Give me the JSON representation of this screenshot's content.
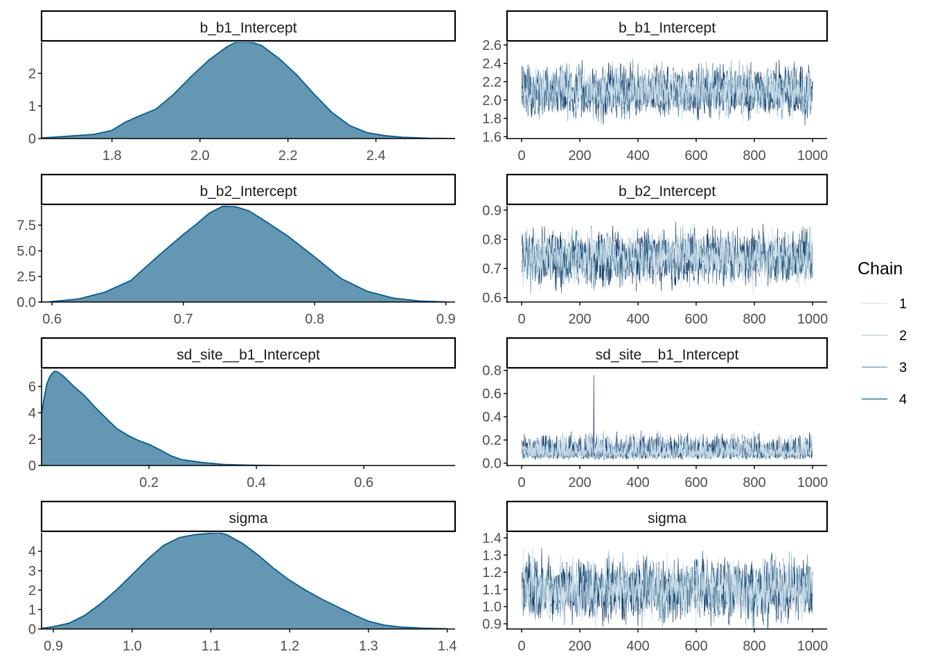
{
  "legend": {
    "title": "Chain",
    "items": [
      {
        "label": "1",
        "color": "#d1e1ec"
      },
      {
        "label": "2",
        "color": "#b3cde0"
      },
      {
        "label": "3",
        "color": "#6497b1"
      },
      {
        "label": "4",
        "color": "#005b96"
      }
    ]
  },
  "colors": {
    "density_fill": "#6497b1",
    "density_line": "#005b96",
    "trace_chains": [
      "#011f4b",
      "#03396c",
      "#6497b1",
      "#d1e1ec"
    ],
    "strip_border": "#000000",
    "axis": "#000000",
    "tick_label": "#4d4d4d"
  },
  "chart_data": [
    {
      "type": "area",
      "kind": "density",
      "title": "b_b1_Intercept",
      "xlim": [
        1.64,
        2.58
      ],
      "ylim": [
        0,
        2.95
      ],
      "xticks": [
        1.8,
        2.0,
        2.2,
        2.4
      ],
      "xtick_labels": [
        "1.8",
        "2.0",
        "2.2",
        "2.4"
      ],
      "yticks": [
        0,
        1,
        2
      ],
      "ytick_labels": [
        "0",
        "1",
        "2"
      ],
      "x": [
        1.64,
        1.7,
        1.76,
        1.8,
        1.83,
        1.86,
        1.9,
        1.94,
        1.98,
        2.02,
        2.06,
        2.08,
        2.1,
        2.12,
        2.14,
        2.18,
        2.22,
        2.26,
        2.3,
        2.34,
        2.38,
        2.42,
        2.46,
        2.52,
        2.58
      ],
      "y": [
        0.02,
        0.07,
        0.13,
        0.25,
        0.5,
        0.68,
        0.9,
        1.35,
        1.9,
        2.4,
        2.8,
        2.94,
        2.95,
        2.94,
        2.85,
        2.45,
        1.95,
        1.35,
        0.8,
        0.4,
        0.18,
        0.09,
        0.04,
        0.01,
        0.0
      ]
    },
    {
      "type": "line",
      "kind": "trace",
      "title": "b_b1_Intercept",
      "xlim": [
        -50,
        1050
      ],
      "ylim": [
        1.58,
        2.63
      ],
      "xticks": [
        0,
        200,
        400,
        600,
        800,
        1000
      ],
      "xtick_labels": [
        "0",
        "200",
        "400",
        "600",
        "800",
        "1000"
      ],
      "yticks": [
        1.6,
        1.8,
        2.0,
        2.2,
        2.4,
        2.6
      ],
      "ytick_labels": [
        "1.6",
        "1.8",
        "2.0",
        "2.2",
        "2.4",
        "2.6"
      ],
      "iterations": [
        1,
        1000
      ],
      "chains": 4,
      "mean": 2.09,
      "sd": 0.135,
      "spikes": []
    },
    {
      "type": "area",
      "kind": "density",
      "title": "b_b2_Intercept",
      "xlim": [
        0.592,
        0.907
      ],
      "ylim": [
        0,
        9.4
      ],
      "xticks": [
        0.6,
        0.7,
        0.8,
        0.9
      ],
      "xtick_labels": [
        "0.6",
        "0.7",
        "0.8",
        "0.9"
      ],
      "yticks": [
        0,
        2.5,
        5.0,
        7.5
      ],
      "ytick_labels": [
        "0.0",
        "2.5",
        "5.0",
        "7.5"
      ],
      "x": [
        0.598,
        0.62,
        0.64,
        0.66,
        0.68,
        0.7,
        0.71,
        0.72,
        0.73,
        0.74,
        0.75,
        0.76,
        0.78,
        0.8,
        0.82,
        0.84,
        0.86,
        0.88,
        0.9
      ],
      "y": [
        0.02,
        0.3,
        0.95,
        2.1,
        4.4,
        6.6,
        7.6,
        8.7,
        9.35,
        9.3,
        8.9,
        8.1,
        6.4,
        4.4,
        2.3,
        1.05,
        0.38,
        0.1,
        0.01
      ]
    },
    {
      "type": "line",
      "kind": "trace",
      "title": "b_b2_Intercept",
      "xlim": [
        -50,
        1050
      ],
      "ylim": [
        0.585,
        0.915
      ],
      "xticks": [
        0,
        200,
        400,
        600,
        800,
        1000
      ],
      "xtick_labels": [
        "0",
        "200",
        "400",
        "600",
        "800",
        "1000"
      ],
      "yticks": [
        0.6,
        0.7,
        0.8,
        0.9
      ],
      "ytick_labels": [
        "0.6",
        "0.7",
        "0.8",
        "0.9"
      ],
      "iterations": [
        1,
        1000
      ],
      "chains": 4,
      "mean": 0.735,
      "sd": 0.045,
      "spikes": []
    },
    {
      "type": "area",
      "kind": "density",
      "title": "sd_site__b1_Intercept",
      "xlim": [
        0.0,
        0.77
      ],
      "ylim": [
        0,
        7.3
      ],
      "xticks": [
        0.2,
        0.4,
        0.6
      ],
      "xtick_labels": [
        "0.2",
        "0.4",
        "0.6"
      ],
      "yticks": [
        0,
        2,
        4,
        6
      ],
      "ytick_labels": [
        "0",
        "2",
        "4",
        "6"
      ],
      "x": [
        0.0,
        0.005,
        0.01,
        0.015,
        0.02,
        0.025,
        0.03,
        0.04,
        0.05,
        0.06,
        0.08,
        0.1,
        0.12,
        0.14,
        0.16,
        0.18,
        0.2,
        0.22,
        0.24,
        0.26,
        0.3,
        0.34,
        0.38,
        0.42,
        0.445
      ],
      "y": [
        3.9,
        5.2,
        6.2,
        6.7,
        7.0,
        7.15,
        7.1,
        6.8,
        6.4,
        6.0,
        5.3,
        4.4,
        3.6,
        2.8,
        2.3,
        1.9,
        1.6,
        1.2,
        0.75,
        0.45,
        0.22,
        0.08,
        0.03,
        0.01,
        0.0
      ]
    },
    {
      "type": "line",
      "kind": "trace",
      "title": "sd_site__b1_Intercept",
      "xlim": [
        -50,
        1050
      ],
      "ylim": [
        -0.02,
        0.81
      ],
      "xticks": [
        0,
        200,
        400,
        600,
        800,
        1000
      ],
      "xtick_labels": [
        "0",
        "200",
        "400",
        "600",
        "800",
        "1000"
      ],
      "yticks": [
        0.0,
        0.2,
        0.4,
        0.6,
        0.8
      ],
      "ytick_labels": [
        "0.0",
        "0.2",
        "0.4",
        "0.6",
        "0.8"
      ],
      "iterations": [
        1,
        1000
      ],
      "chains": 4,
      "mean": 0.09,
      "sd": 0.07,
      "positive": true,
      "spikes": [
        {
          "iteration": 248,
          "value": 0.76
        }
      ]
    },
    {
      "type": "area",
      "kind": "density",
      "title": "sigma",
      "xlim": [
        0.885,
        1.41
      ],
      "ylim": [
        0,
        4.95
      ],
      "xticks": [
        0.9,
        1.0,
        1.1,
        1.2,
        1.3,
        1.4
      ],
      "xtick_labels": [
        "0.9",
        "1.0",
        "1.1",
        "1.2",
        "1.3",
        "1.4"
      ],
      "yticks": [
        0,
        1,
        2,
        3,
        4
      ],
      "ytick_labels": [
        "0",
        "1",
        "2",
        "3",
        "4"
      ],
      "x": [
        0.885,
        0.9,
        0.92,
        0.94,
        0.96,
        0.98,
        1.0,
        1.02,
        1.04,
        1.06,
        1.08,
        1.1,
        1.11,
        1.12,
        1.14,
        1.16,
        1.18,
        1.2,
        1.22,
        1.24,
        1.26,
        1.28,
        1.3,
        1.32,
        1.34,
        1.37,
        1.4
      ],
      "y": [
        0.03,
        0.12,
        0.3,
        0.7,
        1.3,
        2.0,
        2.8,
        3.6,
        4.3,
        4.7,
        4.85,
        4.92,
        4.95,
        4.85,
        4.4,
        3.8,
        3.1,
        2.5,
        2.0,
        1.55,
        1.15,
        0.75,
        0.4,
        0.2,
        0.1,
        0.04,
        0.01
      ]
    },
    {
      "type": "line",
      "kind": "trace",
      "title": "sigma",
      "xlim": [
        -50,
        1050
      ],
      "ylim": [
        0.87,
        1.43
      ],
      "xticks": [
        0,
        200,
        400,
        600,
        800,
        1000
      ],
      "xtick_labels": [
        "0",
        "200",
        "400",
        "600",
        "800",
        "1000"
      ],
      "yticks": [
        0.9,
        1.0,
        1.1,
        1.2,
        1.3,
        1.4
      ],
      "ytick_labels": [
        "0.9",
        "1.0",
        "1.1",
        "1.2",
        "1.3",
        "1.4"
      ],
      "iterations": [
        1,
        1000
      ],
      "chains": 4,
      "mean": 1.1,
      "sd": 0.085,
      "spikes": []
    }
  ]
}
